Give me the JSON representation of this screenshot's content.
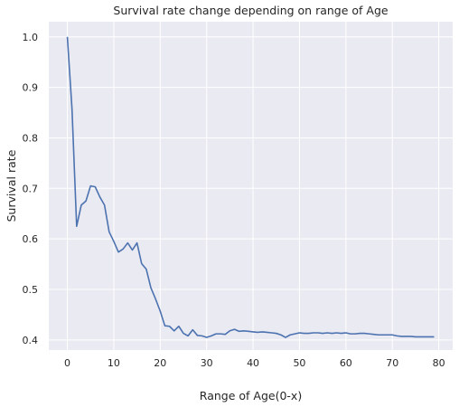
{
  "chart_data": {
    "type": "line",
    "title": "Survival rate change depending on range of Age",
    "xlabel": "Range of Age(0-x)",
    "ylabel": "Survival rate",
    "xlim": [
      -4,
      83
    ],
    "ylim": [
      0.38,
      1.03
    ],
    "x_ticks": [
      0,
      10,
      20,
      30,
      40,
      50,
      60,
      70,
      80
    ],
    "y_ticks": [
      0.4,
      0.5,
      0.6,
      0.7,
      0.8,
      0.9,
      1.0
    ],
    "x_tick_labels": [
      "0",
      "10",
      "20",
      "30",
      "40",
      "50",
      "60",
      "70",
      "80"
    ],
    "y_tick_labels": [
      "0.4",
      "0.5",
      "0.6",
      "0.7",
      "0.8",
      "0.9",
      "1.0"
    ],
    "grid": true,
    "background_color": "#eaeaf2",
    "grid_color": "#ffffff",
    "line_color": "#4c72b0",
    "series": [
      {
        "x": [
          0,
          1,
          2,
          3,
          4,
          5,
          6,
          7,
          8,
          9,
          10,
          11,
          12,
          13,
          14,
          15,
          16,
          17,
          18,
          19,
          20,
          21,
          22,
          23,
          24,
          25,
          26,
          27,
          28,
          29,
          30,
          31,
          32,
          33,
          34,
          35,
          36,
          37,
          38,
          39,
          40,
          41,
          42,
          43,
          44,
          45,
          46,
          47,
          48,
          49,
          50,
          51,
          52,
          53,
          54,
          55,
          56,
          57,
          58,
          59,
          60,
          61,
          62,
          63,
          64,
          65,
          66,
          67,
          68,
          69,
          70,
          71,
          72,
          73,
          74,
          75,
          76,
          77,
          78,
          79
        ],
        "values": [
          1.0,
          0.857,
          0.625,
          0.667,
          0.675,
          0.705,
          0.703,
          0.683,
          0.667,
          0.614,
          0.595,
          0.574,
          0.58,
          0.592,
          0.578,
          0.592,
          0.551,
          0.54,
          0.503,
          0.481,
          0.457,
          0.428,
          0.427,
          0.418,
          0.427,
          0.413,
          0.408,
          0.42,
          0.409,
          0.408,
          0.405,
          0.408,
          0.412,
          0.412,
          0.411,
          0.418,
          0.421,
          0.417,
          0.418,
          0.417,
          0.416,
          0.415,
          0.416,
          0.415,
          0.414,
          0.413,
          0.41,
          0.405,
          0.41,
          0.412,
          0.414,
          0.413,
          0.413,
          0.414,
          0.414,
          0.413,
          0.414,
          0.413,
          0.414,
          0.413,
          0.414,
          0.412,
          0.412,
          0.413,
          0.413,
          0.412,
          0.411,
          0.41,
          0.41,
          0.41,
          0.41,
          0.408,
          0.407,
          0.407,
          0.407,
          0.406,
          0.406,
          0.406,
          0.406,
          0.406
        ]
      }
    ]
  }
}
